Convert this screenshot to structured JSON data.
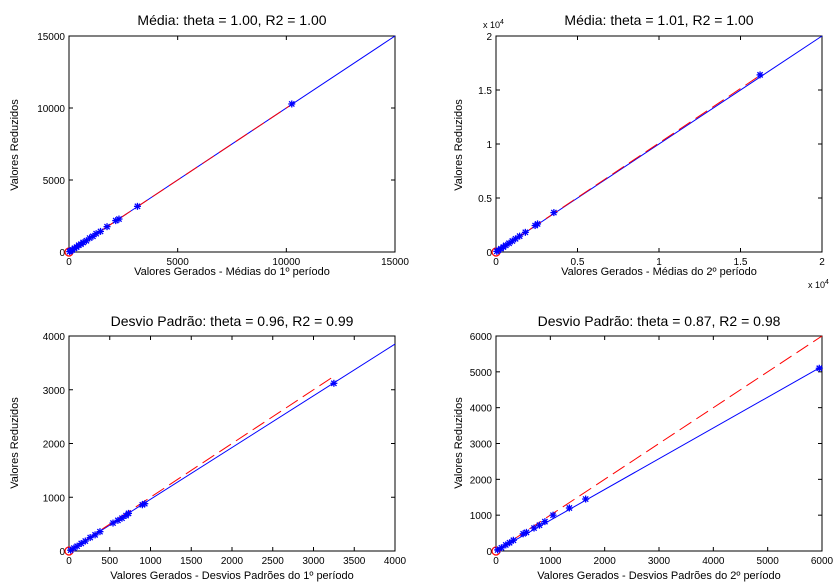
{
  "chart_data": [
    {
      "type": "scatter",
      "title": "Média: theta = 1.00, R2 = 1.00",
      "xlabel": "Valores Gerados - Médias do 1º período",
      "ylabel": "Valores Reduzidos",
      "xlim": [
        0,
        15000
      ],
      "ylim": [
        0,
        15000
      ],
      "xticks": [
        "0",
        "5000",
        "10000",
        "15000"
      ],
      "yticks": [
        "0",
        "5000",
        "10000",
        "15000"
      ],
      "x_exponent": "",
      "y_exponent": "",
      "points": [
        [
          30,
          30
        ],
        [
          80,
          90
        ],
        [
          150,
          140
        ],
        [
          250,
          260
        ],
        [
          350,
          340
        ],
        [
          450,
          470
        ],
        [
          550,
          540
        ],
        [
          650,
          660
        ],
        [
          800,
          780
        ],
        [
          950,
          970
        ],
        [
          1100,
          1090
        ],
        [
          1250,
          1270
        ],
        [
          1450,
          1430
        ],
        [
          1750,
          1760
        ],
        [
          2150,
          2180
        ],
        [
          2300,
          2290
        ],
        [
          3150,
          3170
        ],
        [
          10250,
          10280
        ]
      ],
      "identity_line": [
        [
          0,
          0
        ],
        [
          15000,
          15000
        ]
      ],
      "fit_line": [
        [
          0,
          0
        ],
        [
          10250,
          10250
        ]
      ],
      "grid": false
    },
    {
      "type": "scatter",
      "title": "Média: theta = 1.01, R2 = 1.00",
      "xlabel": "Valores Gerados - Médias do 2º período",
      "ylabel": "Valores Reduzidos",
      "xlim": [
        0,
        20000
      ],
      "ylim": [
        0,
        20000
      ],
      "xticks": [
        "0",
        "0.5",
        "1",
        "1.5",
        "2"
      ],
      "yticks": [
        "0",
        "0.5",
        "1",
        "1.5",
        "2"
      ],
      "x_exponent": "x 10",
      "y_exponent": "x 10",
      "exponent_power": "4",
      "points": [
        [
          50,
          60
        ],
        [
          150,
          160
        ],
        [
          300,
          310
        ],
        [
          450,
          460
        ],
        [
          600,
          620
        ],
        [
          800,
          810
        ],
        [
          1000,
          1020
        ],
        [
          1200,
          1220
        ],
        [
          1450,
          1470
        ],
        [
          1800,
          1820
        ],
        [
          2400,
          2450
        ],
        [
          2550,
          2600
        ],
        [
          3550,
          3650
        ],
        [
          16200,
          16400
        ]
      ],
      "identity_line": [
        [
          0,
          0
        ],
        [
          20000,
          20000
        ]
      ],
      "fit_line": [
        [
          0,
          0
        ],
        [
          16200,
          16350
        ]
      ],
      "grid": false
    },
    {
      "type": "scatter",
      "title": "Desvio Padrão: theta = 0.96, R2 = 0.99",
      "xlabel": "Valores Gerados - Desvios Padrões  do 1º período",
      "ylabel": "Valores Reduzidos",
      "xlim": [
        0,
        4000
      ],
      "ylim": [
        0,
        4000
      ],
      "xticks": [
        "0",
        "500",
        "1000",
        "1500",
        "2000",
        "2500",
        "3000",
        "3500",
        "4000"
      ],
      "yticks": [
        "0",
        "1000",
        "2000",
        "3000",
        "4000"
      ],
      "x_exponent": "",
      "y_exponent": "",
      "points": [
        [
          20,
          15
        ],
        [
          60,
          55
        ],
        [
          100,
          90
        ],
        [
          150,
          140
        ],
        [
          200,
          185
        ],
        [
          260,
          250
        ],
        [
          320,
          300
        ],
        [
          380,
          360
        ],
        [
          540,
          520
        ],
        [
          600,
          570
        ],
        [
          650,
          610
        ],
        [
          700,
          660
        ],
        [
          730,
          700
        ],
        [
          900,
          860
        ],
        [
          930,
          880
        ],
        [
          3250,
          3120
        ]
      ],
      "identity_line": [
        [
          0,
          0
        ],
        [
          4000,
          3850
        ]
      ],
      "fit_line": [
        [
          0,
          0
        ],
        [
          3250,
          3250
        ]
      ],
      "grid": false
    },
    {
      "type": "scatter",
      "title": "Desvio Padrão: theta = 0.87, R2 = 0.98",
      "xlabel": "Valores Gerados - Desvios Padrões do 2º período",
      "ylabel": "Valores Reduzidos",
      "xlim": [
        0,
        6000
      ],
      "ylim": [
        0,
        6000
      ],
      "xticks": [
        "0",
        "1000",
        "2000",
        "3000",
        "4000",
        "5000",
        "6000"
      ],
      "yticks": [
        "0",
        "1000",
        "2000",
        "3000",
        "4000",
        "5000",
        "6000"
      ],
      "x_exponent": "",
      "y_exponent": "",
      "points": [
        [
          30,
          30
        ],
        [
          100,
          90
        ],
        [
          180,
          170
        ],
        [
          250,
          230
        ],
        [
          320,
          300
        ],
        [
          500,
          480
        ],
        [
          560,
          520
        ],
        [
          700,
          640
        ],
        [
          800,
          720
        ],
        [
          900,
          820
        ],
        [
          1050,
          1000
        ],
        [
          1350,
          1200
        ],
        [
          1650,
          1450
        ],
        [
          5950,
          5100
        ]
      ],
      "identity_line": [
        [
          0,
          0
        ],
        [
          6000,
          5150
        ]
      ],
      "fit_line": [
        [
          0,
          0
        ],
        [
          6000,
          6000
        ]
      ],
      "grid": false
    }
  ]
}
